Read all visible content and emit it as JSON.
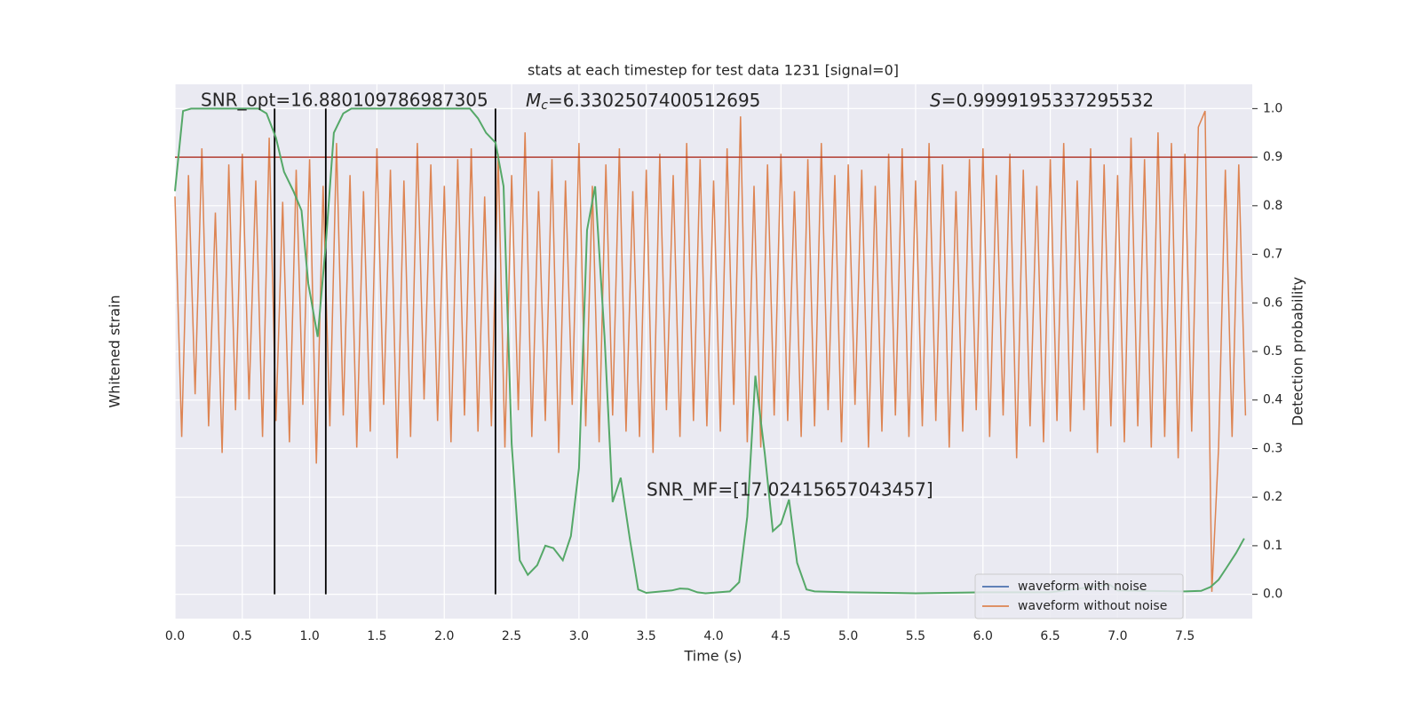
{
  "chart_data": {
    "type": "line",
    "title": "stats at each timestep for test data 1231 [signal=0]",
    "x_label": "Time (s)",
    "y_label": "Whitened strain",
    "y2_label": "Detection probability",
    "xlim": [
      0,
      8
    ],
    "xticks": [
      {
        "value": 0,
        "label": "0.0"
      },
      0.5,
      {
        "value": 1,
        "label": "1.0"
      },
      1.5,
      {
        "value": 2,
        "label": "2.0"
      },
      2.5,
      {
        "value": 3,
        "label": "3.0"
      },
      3.5,
      {
        "value": 4,
        "label": "4.0"
      },
      4.5,
      {
        "value": 5,
        "label": "5.0"
      },
      5.5,
      {
        "value": 6,
        "label": "6.0"
      },
      6.5,
      {
        "value": 7,
        "label": "7.0"
      },
      7.5
    ],
    "ylim": [
      -6,
      4
    ],
    "y2lim": [
      -0.05,
      1.05
    ],
    "y2ticks": [
      {
        "value": 0,
        "label": "0.0"
      },
      0.1,
      0.2,
      0.3,
      0.4,
      0.5,
      0.6,
      0.7,
      0.8,
      0.9,
      {
        "value": 1,
        "label": "1.0"
      }
    ],
    "grid": true,
    "legend_corner": "lower right",
    "series": [
      {
        "name": "waveform with noise",
        "color": "#4c72b0"
      },
      {
        "name": "waveform without noise",
        "color": "#dd8452",
        "x": [
          0,
          0.05,
          0.1,
          0.15,
          0.2,
          0.25,
          0.3,
          0.35,
          0.4,
          0.45,
          0.5,
          0.55,
          0.6,
          0.65,
          0.7,
          0.75,
          0.8,
          0.85,
          0.9,
          0.95,
          1,
          1.05,
          1.1,
          1.15,
          1.2,
          1.25,
          1.3,
          1.35,
          1.4,
          1.45,
          1.5,
          1.55,
          1.6,
          1.65,
          1.7,
          1.75,
          1.8,
          1.85,
          1.9,
          1.95,
          2,
          2.05,
          2.1,
          2.15,
          2.2,
          2.25,
          2.3,
          2.35,
          2.4,
          2.45,
          2.5,
          2.55,
          2.6,
          2.65,
          2.7,
          2.75,
          2.8,
          2.85,
          2.9,
          2.95,
          3,
          3.05,
          3.1,
          3.15,
          3.2,
          3.25,
          3.3,
          3.35,
          3.4,
          3.45,
          3.5,
          3.55,
          3.6,
          3.65,
          3.7,
          3.75,
          3.8,
          3.85,
          3.9,
          3.95,
          4,
          4.05,
          4.1,
          4.15,
          4.2,
          4.25,
          4.3,
          4.35,
          4.4,
          4.45,
          4.5,
          4.55,
          4.6,
          4.65,
          4.7,
          4.75,
          4.8,
          4.85,
          4.9,
          4.95,
          5,
          5.05,
          5.1,
          5.15,
          5.2,
          5.25,
          5.3,
          5.35,
          5.4,
          5.45,
          5.5,
          5.55,
          5.6,
          5.65,
          5.7,
          5.75,
          5.8,
          5.85,
          5.9,
          5.95,
          6,
          6.05,
          6.1,
          6.15,
          6.2,
          6.25,
          6.3,
          6.35,
          6.4,
          6.45,
          6.5,
          6.55,
          6.6,
          6.65,
          6.7,
          6.75,
          6.8,
          6.85,
          6.9,
          6.95,
          7,
          7.05,
          7.1,
          7.15,
          7.2,
          7.25,
          7.3,
          7.35,
          7.4,
          7.45,
          7.5,
          7.55,
          7.6,
          7.65,
          7.7,
          7.75,
          7.8,
          7.85,
          7.9,
          7.95
        ],
        "values": [
          1.9,
          -2.6,
          2.3,
          -1.8,
          2.8,
          -2.4,
          1.6,
          -2.9,
          2.5,
          -2.1,
          2.7,
          -1.9,
          2.2,
          -2.6,
          3.0,
          -2.3,
          1.8,
          -2.7,
          2.4,
          -2.0,
          2.6,
          -3.1,
          2.1,
          -2.4,
          2.9,
          -2.2,
          2.3,
          -2.8,
          2.0,
          -2.5,
          2.8,
          -2.0,
          2.4,
          -3.0,
          2.2,
          -2.6,
          2.9,
          -1.9,
          2.5,
          -2.3,
          2.1,
          -2.7,
          2.6,
          -2.2,
          2.8,
          -2.5,
          1.9,
          -2.4,
          2.7,
          -2.8,
          2.3,
          -2.1,
          3.1,
          -2.6,
          2.0,
          -2.3,
          2.6,
          -2.9,
          2.2,
          -2.0,
          2.9,
          -2.4,
          2.1,
          -2.7,
          2.5,
          -2.2,
          2.8,
          -2.5,
          2.0,
          -2.6,
          2.4,
          -2.9,
          2.7,
          -2.1,
          2.3,
          -2.6,
          2.9,
          -2.3,
          2.6,
          -2.4,
          2.2,
          -2.5,
          2.8,
          -2.0,
          3.4,
          -2.7,
          2.1,
          -2.8,
          2.5,
          -2.2,
          2.7,
          -2.3,
          2.0,
          -2.6,
          2.6,
          -2.4,
          2.9,
          -2.1,
          2.3,
          -2.7,
          2.5,
          -2.0,
          2.4,
          -2.8,
          2.1,
          -2.5,
          2.7,
          -2.2,
          2.8,
          -2.6,
          2.2,
          -2.4,
          2.9,
          -2.3,
          2.5,
          -2.8,
          2.0,
          -2.5,
          2.6,
          -2.1,
          2.8,
          -2.6,
          2.3,
          -2.2,
          2.7,
          -3.0,
          2.4,
          -2.4,
          2.1,
          -2.7,
          2.6,
          -2.3,
          2.9,
          -2.5,
          2.2,
          -2.1,
          2.8,
          -2.9,
          2.5,
          -2.4,
          2.3,
          -2.7,
          3.0,
          -2.4,
          2.6,
          -2.8,
          3.1,
          -2.6,
          2.9,
          -3.0,
          2.7,
          -2.5,
          3.2,
          3.5,
          -5.5,
          -2.8,
          2.4,
          -2.6,
          2.5,
          -2.2
        ]
      },
      {
        "name": "detection probability",
        "color": "#55a868",
        "axis": "y2",
        "x": [
          0,
          0.06,
          0.12,
          0.25,
          0.5,
          0.62,
          0.68,
          0.75,
          0.81,
          0.88,
          0.94,
          0.99,
          1.06,
          1.12,
          1.18,
          1.25,
          1.31,
          1.5,
          1.75,
          2.0,
          2.19,
          2.25,
          2.31,
          2.38,
          2.44,
          2.5,
          2.56,
          2.62,
          2.69,
          2.75,
          2.81,
          2.88,
          2.94,
          3.0,
          3.06,
          3.12,
          3.19,
          3.25,
          3.31,
          3.38,
          3.44,
          3.5,
          3.69,
          3.75,
          3.81,
          3.88,
          3.94,
          4.12,
          4.19,
          4.25,
          4.31,
          4.38,
          4.44,
          4.5,
          4.56,
          4.62,
          4.69,
          4.75,
          5.0,
          5.5,
          6.0,
          6.5,
          6.94,
          7.0,
          7.5,
          7.62,
          7.69,
          7.75,
          7.81,
          7.88,
          7.94
        ],
        "values": [
          0.83,
          0.995,
          1.0,
          1.0,
          1.0,
          1.0,
          0.99,
          0.94,
          0.87,
          0.83,
          0.79,
          0.64,
          0.53,
          0.72,
          0.95,
          0.99,
          1.0,
          1.0,
          1.0,
          1.0,
          1.0,
          0.98,
          0.95,
          0.93,
          0.84,
          0.31,
          0.07,
          0.04,
          0.06,
          0.1,
          0.095,
          0.07,
          0.12,
          0.26,
          0.75,
          0.84,
          0.53,
          0.19,
          0.24,
          0.11,
          0.01,
          0.003,
          0.008,
          0.012,
          0.011,
          0.004,
          0.002,
          0.006,
          0.025,
          0.16,
          0.45,
          0.29,
          0.13,
          0.145,
          0.195,
          0.065,
          0.01,
          0.006,
          0.004,
          0.002,
          0.004,
          0.004,
          0.02,
          0.008,
          0.006,
          0.007,
          0.015,
          0.03,
          0.055,
          0.085,
          0.115
        ]
      }
    ],
    "threshold": {
      "value": 0.9,
      "color": "#b03a2e"
    },
    "markers_x": [
      0.74,
      1.12,
      2.38
    ],
    "annotations": {
      "snr_opt": "SNR_opt=16.880109786987305",
      "mc": {
        "symbol": "M",
        "sub": "c",
        "value": "=6.3302507400512695"
      },
      "s": {
        "symbol": "S",
        "value": "=0.9999195337295532"
      },
      "snr_mf": "SNR_MF=[17.02415657043457]"
    }
  }
}
